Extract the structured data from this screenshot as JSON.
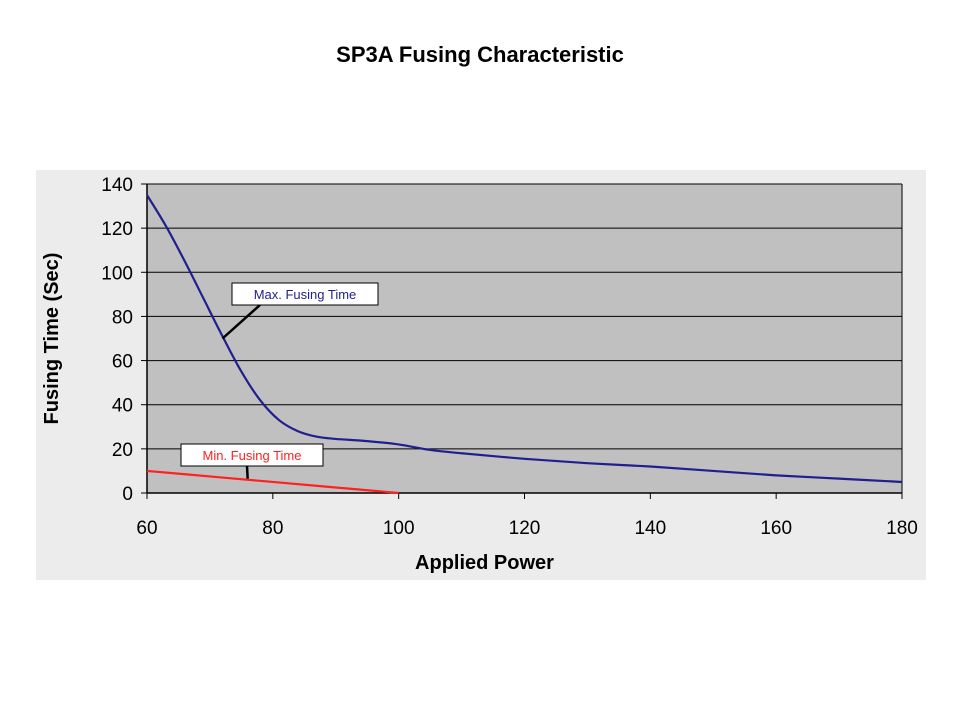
{
  "page": {
    "title": "SP3A Fusing Characteristic"
  },
  "chart_data": {
    "type": "line",
    "title": "SP3A Fusing Characteristic",
    "xlabel": "Applied Power",
    "ylabel": "Fusing Time (Sec)",
    "xlim": [
      60,
      180
    ],
    "ylim": [
      0,
      140
    ],
    "xticks": [
      60,
      80,
      100,
      120,
      140,
      160,
      180
    ],
    "yticks": [
      0,
      20,
      40,
      60,
      80,
      100,
      120,
      140
    ],
    "grid": "horizontal",
    "legend": "none",
    "colors": {
      "plot_background": "#c0c0c0",
      "gridline": "#000000",
      "max_series": "#1f1f8f",
      "min_series": "#ff2020"
    },
    "series": [
      {
        "name": "Max. Fusing Time",
        "color": "#1f1f8f",
        "x": [
          60,
          63,
          66,
          69,
          72,
          75,
          78,
          81,
          84,
          87,
          90,
          95,
          100,
          105,
          110,
          120,
          130,
          140,
          150,
          160,
          170,
          180
        ],
        "y": [
          135,
          121,
          105,
          88,
          71,
          55,
          42,
          33,
          28,
          25.5,
          24.5,
          23.5,
          22,
          19.5,
          18,
          15.5,
          13.5,
          12,
          10,
          8,
          6.5,
          5
        ]
      },
      {
        "name": "Min. Fusing Time",
        "color": "#ff2020",
        "x": [
          60,
          70,
          80,
          90,
          100
        ],
        "y": [
          10,
          7.5,
          5,
          2.5,
          0
        ]
      }
    ],
    "annotations": [
      {
        "text": "Max. Fusing Time",
        "color": "#1f1f8f",
        "points_to": {
          "x": 72,
          "y": 70
        }
      },
      {
        "text": "Min. Fusing Time",
        "color": "#ff2020",
        "points_to": {
          "x": 76,
          "y": 6.5
        }
      }
    ]
  }
}
